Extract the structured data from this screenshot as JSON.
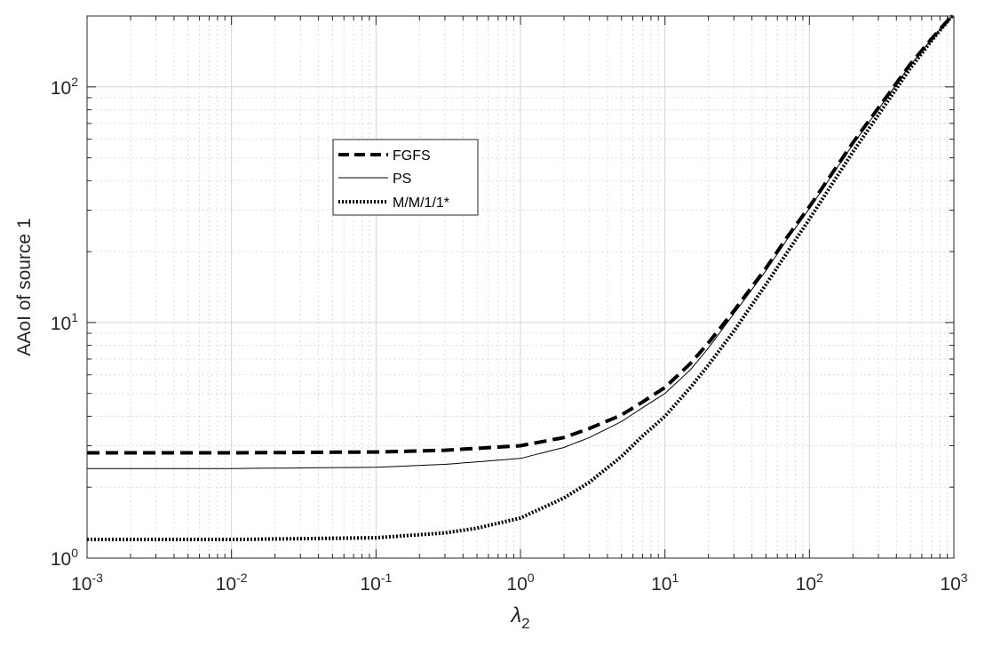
{
  "chart_data": {
    "type": "line",
    "title": "",
    "xlabel": {
      "symbol": "λ",
      "subscript": "2"
    },
    "ylabel": "AAoI of source 1",
    "xscale": "log",
    "yscale": "log",
    "xlim": [
      0.001,
      1000
    ],
    "ylim": [
      1,
      200
    ],
    "grid": true,
    "minor_grid": true,
    "legend": "top-left",
    "x_ticks": [
      {
        "value": 0.001,
        "base": "10",
        "exp": "-3"
      },
      {
        "value": 0.01,
        "base": "10",
        "exp": "-2"
      },
      {
        "value": 0.1,
        "base": "10",
        "exp": "-1"
      },
      {
        "value": 1,
        "base": "10",
        "exp": "0"
      },
      {
        "value": 10,
        "base": "10",
        "exp": "1"
      },
      {
        "value": 100,
        "base": "10",
        "exp": "2"
      },
      {
        "value": 1000,
        "base": "10",
        "exp": "3"
      }
    ],
    "y_ticks": [
      {
        "value": 1,
        "base": "10",
        "exp": "0"
      },
      {
        "value": 10,
        "base": "10",
        "exp": "1"
      },
      {
        "value": 100,
        "base": "10",
        "exp": "2"
      }
    ],
    "series": [
      {
        "name": "FGFS",
        "style": "dashed",
        "color": "#000000",
        "points": [
          [
            0.001,
            2.8
          ],
          [
            0.01,
            2.8
          ],
          [
            0.1,
            2.82
          ],
          [
            0.3,
            2.87
          ],
          [
            1,
            3.0
          ],
          [
            2,
            3.25
          ],
          [
            3,
            3.55
          ],
          [
            5,
            4.05
          ],
          [
            7,
            4.6
          ],
          [
            10,
            5.3
          ],
          [
            15,
            6.7
          ],
          [
            20,
            8.2
          ],
          [
            30,
            11.2
          ],
          [
            50,
            17.0
          ],
          [
            70,
            23.0
          ],
          [
            100,
            31.0
          ],
          [
            200,
            58.0
          ],
          [
            500,
            125.0
          ],
          [
            700,
            160.0
          ],
          [
            1000,
            205.0
          ]
        ]
      },
      {
        "name": "PS",
        "style": "solid",
        "color": "#000000",
        "points": [
          [
            0.001,
            2.4
          ],
          [
            0.01,
            2.4
          ],
          [
            0.1,
            2.43
          ],
          [
            0.3,
            2.5
          ],
          [
            1,
            2.65
          ],
          [
            2,
            2.95
          ],
          [
            3,
            3.25
          ],
          [
            5,
            3.8
          ],
          [
            7,
            4.35
          ],
          [
            10,
            5.0
          ],
          [
            15,
            6.3
          ],
          [
            20,
            7.8
          ],
          [
            30,
            10.9
          ],
          [
            50,
            16.6
          ],
          [
            70,
            22.5
          ],
          [
            100,
            30.5
          ],
          [
            200,
            57.0
          ],
          [
            500,
            124.0
          ],
          [
            700,
            159.0
          ],
          [
            1000,
            205.0
          ]
        ]
      },
      {
        "name": "M/M/1/1*",
        "style": "dotted",
        "color": "#000000",
        "points": [
          [
            0.001,
            1.2
          ],
          [
            0.01,
            1.2
          ],
          [
            0.1,
            1.22
          ],
          [
            0.3,
            1.28
          ],
          [
            0.5,
            1.34
          ],
          [
            1,
            1.48
          ],
          [
            2,
            1.8
          ],
          [
            3,
            2.1
          ],
          [
            5,
            2.7
          ],
          [
            7,
            3.3
          ],
          [
            10,
            4.0
          ],
          [
            15,
            5.3
          ],
          [
            20,
            6.6
          ],
          [
            30,
            9.2
          ],
          [
            50,
            14.5
          ],
          [
            70,
            19.8
          ],
          [
            100,
            27.5
          ],
          [
            200,
            53.0
          ],
          [
            500,
            120.0
          ],
          [
            700,
            157.0
          ],
          [
            1000,
            205.0
          ]
        ]
      }
    ]
  }
}
